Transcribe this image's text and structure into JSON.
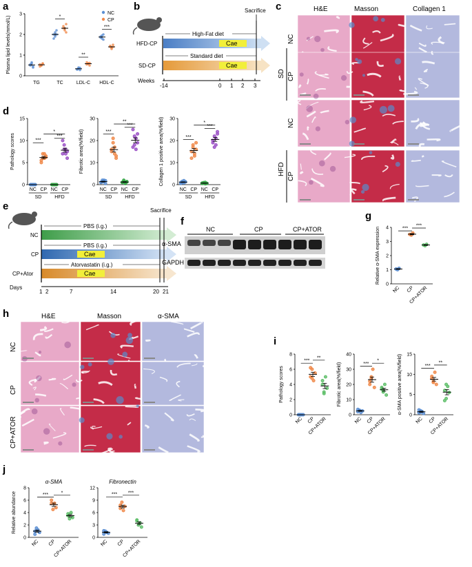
{
  "colors": {
    "nc": "#5b8fd3",
    "cp": "#f08a4b",
    "ator": "#5fbf6a",
    "nc_hfd": "#3aa84a",
    "he": "#e6a4c4",
    "masson": "#c7304a",
    "col": "#aeb5db"
  },
  "panel_labels": {
    "a": "a",
    "b": "b",
    "c": "c",
    "d": "d",
    "e": "e",
    "f": "f",
    "g": "g",
    "h": "h",
    "i": "i",
    "j": "j"
  },
  "schematic_b": {
    "row1": "HFD-CP",
    "row2": "SD-CP",
    "diet1": "High-Fat diet",
    "diet2": "Standard diet",
    "cae": "Cae",
    "sacrifice": "Sacrifice",
    "weeks_label": "Weeks",
    "ticks": [
      "-14",
      "0",
      "1",
      "2",
      "3"
    ]
  },
  "schematic_e": {
    "rows": [
      "NC",
      "CP",
      "CP+Ator"
    ],
    "pbs": "PBS (i.g.)",
    "ator": "Atorvastatin (i.g.)",
    "cae": "Cae",
    "sacrifice": "Sacrifice",
    "days_label": "Days",
    "ticks": [
      "1",
      "2",
      "7",
      "14",
      "20",
      "21"
    ]
  },
  "histology_c": {
    "cols": [
      "H&E",
      "Masson",
      "Collagen 1"
    ],
    "groups": [
      "SD",
      "HFD"
    ],
    "rows": [
      "NC",
      "CP",
      "NC",
      "CP"
    ]
  },
  "histology_h": {
    "cols": [
      "H&E",
      "Masson",
      "α-SMA"
    ],
    "rows": [
      "NC",
      "CP",
      "CP+ATOR"
    ]
  },
  "blot_f": {
    "groups": [
      "NC",
      "CP",
      "CP+ATOR"
    ],
    "bands": [
      "α-SMA",
      "GAPDH"
    ]
  },
  "chart_data": [
    {
      "panel": "a",
      "type": "scatter",
      "ylabel": "Plasma lipid levels(mmol/L)",
      "ylim": [
        0,
        3
      ],
      "yticks": [
        "0",
        "1",
        "2",
        "3"
      ],
      "categories": [
        "TG",
        "TC",
        "LDL-C",
        "HDL-C"
      ],
      "legend": [
        "NC",
        "CP"
      ],
      "legend_position": "top-right",
      "series": [
        {
          "name": "NC",
          "values": [
            [
              0.55,
              0.6,
              0.45,
              0.5,
              0.65,
              0.4
            ],
            [
              2.0,
              1.9,
              2.2,
              1.8,
              2.1,
              2.0
            ],
            [
              0.3,
              0.35,
              0.28,
              0.32,
              0.4,
              0.38
            ],
            [
              1.9,
              1.8,
              2.0,
              1.85,
              1.95,
              1.75
            ]
          ]
        },
        {
          "name": "CP",
          "values": [
            [
              0.55,
              0.5,
              0.6,
              0.45,
              0.5,
              0.58
            ],
            [
              2.3,
              2.2,
              2.5,
              2.4,
              2.3,
              2.1
            ],
            [
              0.55,
              0.6,
              0.5,
              0.65,
              0.58,
              0.62
            ],
            [
              1.4,
              1.35,
              1.5,
              1.45,
              1.3,
              1.4
            ]
          ]
        }
      ],
      "sig": [
        {
          "pair": "TC",
          "label": "*"
        },
        {
          "pair": "LDL-C",
          "label": "**"
        },
        {
          "pair": "HDL-C",
          "label": "***"
        }
      ]
    },
    {
      "panel": "d1",
      "type": "scatter",
      "ylabel": "Pathology scores",
      "ylim": [
        0,
        15
      ],
      "yticks": [
        "0",
        "5",
        "10",
        "15"
      ],
      "categories": [
        "NC",
        "CP",
        "NC",
        "CP"
      ],
      "groups": [
        "SD",
        "HFD"
      ],
      "values": [
        [
          0,
          0,
          0,
          0,
          0,
          0,
          0,
          0
        ],
        [
          5,
          6,
          7,
          6.5,
          5.5,
          7,
          6,
          6.2
        ],
        [
          0,
          0,
          0,
          0,
          0,
          0,
          0,
          0
        ],
        [
          7,
          9,
          8,
          7.5,
          10,
          8,
          7,
          6
        ]
      ],
      "sig_labels": [
        "***",
        "*",
        "***"
      ]
    },
    {
      "panel": "d2",
      "type": "scatter",
      "ylabel": "Fibrotic area(%/field)",
      "ylim": [
        0,
        30
      ],
      "yticks": [
        "0",
        "10",
        "20",
        "30"
      ],
      "categories": [
        "NC",
        "CP",
        "NC",
        "CP"
      ],
      "groups": [
        "SD",
        "HFD"
      ],
      "values": [
        [
          1,
          2,
          1.5,
          0.5,
          1,
          1.2,
          2,
          1.8
        ],
        [
          15,
          19,
          17,
          13,
          16,
          21,
          14,
          12
        ],
        [
          1,
          1.5,
          0.8,
          1.2,
          1,
          2,
          0.5,
          1.4
        ],
        [
          17,
          22,
          21,
          19,
          25,
          18,
          16,
          23
        ]
      ],
      "sig_labels": [
        "***",
        "**",
        "***"
      ]
    },
    {
      "panel": "d3",
      "type": "scatter",
      "ylabel": "Collagen 1 positive area(%/field)",
      "ylim": [
        0,
        30
      ],
      "yticks": [
        "0",
        "10",
        "20",
        "30"
      ],
      "categories": [
        "NC",
        "CP",
        "NC",
        "CP"
      ],
      "groups": [
        "SD",
        "HFD"
      ],
      "values": [
        [
          1,
          1.5,
          0.8,
          1.2,
          0.5,
          1,
          1.8,
          1.3
        ],
        [
          15,
          18,
          13,
          16,
          12,
          17,
          14,
          19
        ],
        [
          0.5,
          0.8,
          1,
          0.6,
          0.7,
          0.9,
          0.4,
          0.5
        ],
        [
          20,
          22,
          18,
          23,
          19,
          17,
          21,
          24
        ]
      ],
      "sig_labels": [
        "***",
        "*",
        "***"
      ]
    },
    {
      "panel": "g",
      "type": "scatter",
      "ylabel": "Relative α-SMA expression",
      "ylim": [
        0,
        4
      ],
      "yticks": [
        "0",
        "1",
        "2",
        "3",
        "4"
      ],
      "categories": [
        "NC",
        "CP",
        "CP+ATOR"
      ],
      "values": [
        [
          1.05,
          1.0,
          1.1
        ],
        [
          3.5,
          3.45,
          3.6
        ],
        [
          2.75,
          2.7,
          2.8
        ]
      ],
      "sig_labels": [
        "***",
        "***"
      ]
    },
    {
      "panel": "i1",
      "type": "scatter",
      "ylabel": "Pathology scores",
      "ylim": [
        0,
        8
      ],
      "yticks": [
        "0",
        "2",
        "4",
        "6",
        "8"
      ],
      "categories": [
        "NC",
        "CP",
        "CP+ATOR"
      ],
      "values": [
        [
          0,
          0,
          0,
          0,
          0,
          0
        ],
        [
          5,
          6,
          4.5,
          5.5,
          6.2,
          4.8
        ],
        [
          4,
          3,
          5,
          3.5,
          4.5,
          2.8
        ]
      ],
      "sig_labels": [
        "***",
        "**"
      ]
    },
    {
      "panel": "i2",
      "type": "scatter",
      "ylabel": "Fibrotic area(%/field)",
      "ylim": [
        0,
        40
      ],
      "yticks": [
        "0",
        "10",
        "20",
        "30",
        "40"
      ],
      "categories": [
        "NC",
        "CP",
        "CP+ATOR"
      ],
      "values": [
        [
          2,
          3,
          1.5,
          2.5,
          3.5,
          2.8
        ],
        [
          20,
          25,
          30,
          18,
          22,
          24
        ],
        [
          17,
          15,
          20,
          13,
          18,
          16
        ]
      ],
      "sig_labels": [
        "***",
        "*"
      ]
    },
    {
      "panel": "i3",
      "type": "scatter",
      "ylabel": "α-SMA positive area(%/field)",
      "ylim": [
        0,
        15
      ],
      "yticks": [
        "0",
        "5",
        "10",
        "15"
      ],
      "categories": [
        "NC",
        "CP",
        "CP+ATOR"
      ],
      "values": [
        [
          0.5,
          1,
          0.8,
          0.3,
          1.2,
          0.6
        ],
        [
          9,
          8,
          10.5,
          7.5,
          9.5,
          8.2
        ],
        [
          6,
          4,
          7,
          5.5,
          3.5,
          7.5
        ]
      ],
      "sig_labels": [
        "***",
        "**"
      ]
    },
    {
      "panel": "j1",
      "type": "scatter",
      "title": "α-SMA",
      "ylabel": "Relative abundance",
      "ylim": [
        0,
        8
      ],
      "yticks": [
        "0",
        "2",
        "4",
        "6",
        "8"
      ],
      "categories": [
        "NC",
        "CP",
        "CP+ATOR"
      ],
      "values": [
        [
          0.5,
          1.5,
          1.2,
          0.8,
          1
        ],
        [
          6,
          4.5,
          5.5,
          4.8,
          5.5
        ],
        [
          3.5,
          3,
          4,
          3.2,
          3.8
        ]
      ],
      "sig_labels": [
        "***",
        "*"
      ]
    },
    {
      "panel": "j2",
      "type": "scatter",
      "title": "Fibronectin",
      "ylim": [
        0,
        12
      ],
      "yticks": [
        "0",
        "3",
        "6",
        "9",
        "12"
      ],
      "categories": [
        "NC",
        "CP",
        "CP+ATOR"
      ],
      "values": [
        [
          0.8,
          1.5,
          1.2,
          1,
          1.6
        ],
        [
          7,
          8.5,
          6.5,
          7.5,
          7.8
        ],
        [
          4,
          3,
          3.5,
          2.5,
          4.2
        ]
      ],
      "sig_labels": [
        "***",
        "***"
      ]
    }
  ]
}
